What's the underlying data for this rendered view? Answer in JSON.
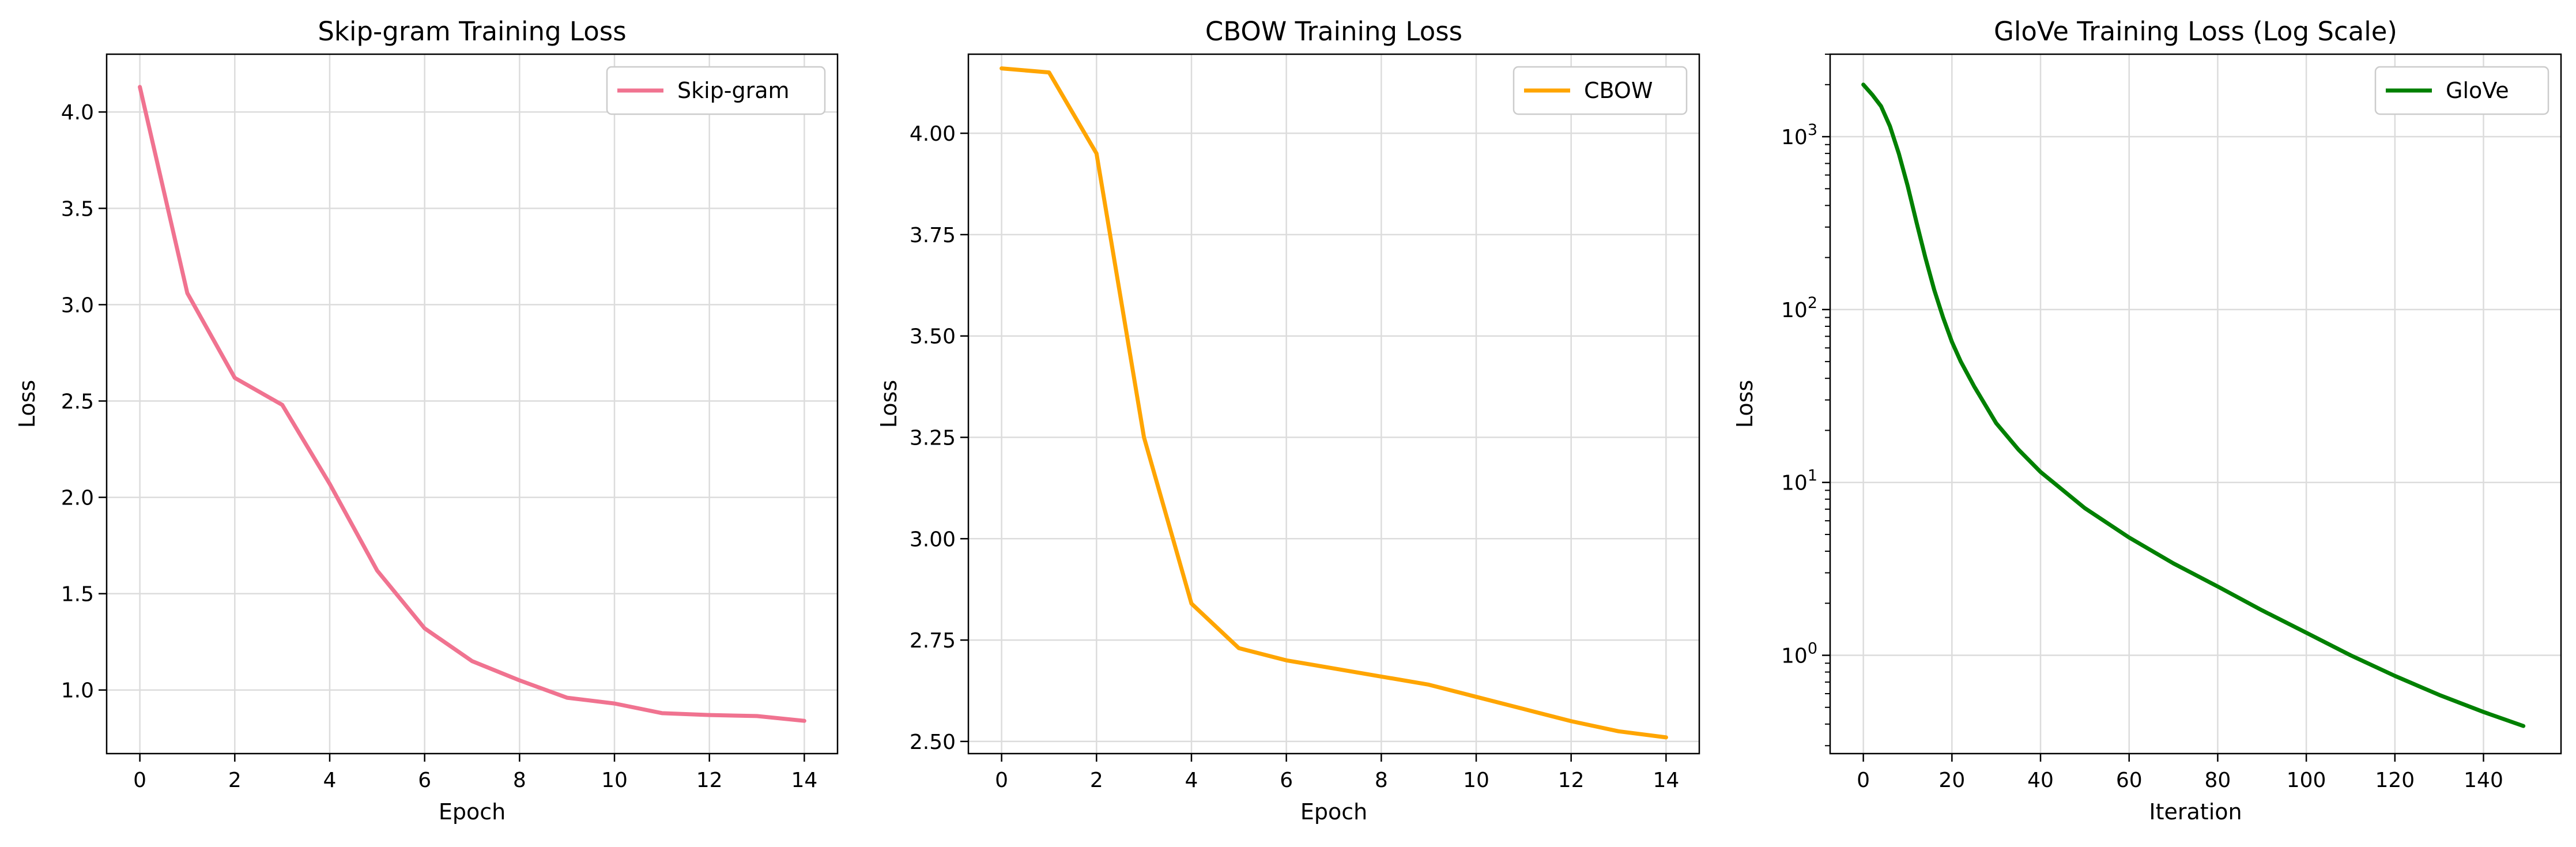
{
  "chart_data": [
    {
      "type": "line",
      "title": "Skip-gram Training Loss",
      "xlabel": "Epoch",
      "ylabel": "Loss",
      "xlim": [
        -0.7,
        14.7
      ],
      "ylim": [
        0.67,
        4.3
      ],
      "xticks": [
        0,
        2,
        4,
        6,
        8,
        10,
        12,
        14
      ],
      "yticks": [
        1.0,
        1.5,
        2.0,
        2.5,
        3.0,
        3.5,
        4.0
      ],
      "ytick_labels": [
        "1.0",
        "1.5",
        "2.0",
        "2.5",
        "3.0",
        "3.5",
        "4.0"
      ],
      "grid": true,
      "legend_position": "upper right",
      "series": [
        {
          "name": "Skip-gram",
          "color": "#f07390",
          "x": [
            0,
            1,
            2,
            3,
            4,
            5,
            6,
            7,
            8,
            9,
            10,
            11,
            12,
            13,
            14
          ],
          "values": [
            4.13,
            3.06,
            2.62,
            2.48,
            2.07,
            1.62,
            1.32,
            1.15,
            1.05,
            0.96,
            0.93,
            0.88,
            0.87,
            0.865,
            0.84
          ]
        }
      ]
    },
    {
      "type": "line",
      "title": "CBOW Training Loss",
      "xlabel": "Epoch",
      "ylabel": "Loss",
      "xlim": [
        -0.7,
        14.7
      ],
      "ylim": [
        2.47,
        4.195
      ],
      "xticks": [
        0,
        2,
        4,
        6,
        8,
        10,
        12,
        14
      ],
      "yticks": [
        2.5,
        2.75,
        3.0,
        3.25,
        3.5,
        3.75,
        4.0
      ],
      "ytick_labels": [
        "2.50",
        "2.75",
        "3.00",
        "3.25",
        "3.50",
        "3.75",
        "4.00"
      ],
      "grid": true,
      "legend_position": "upper right",
      "series": [
        {
          "name": "CBOW",
          "color": "#ffa500",
          "x": [
            0,
            1,
            2,
            3,
            4,
            5,
            6,
            7,
            8,
            9,
            10,
            11,
            12,
            13,
            14
          ],
          "values": [
            4.16,
            4.15,
            3.95,
            3.25,
            2.84,
            2.73,
            2.7,
            2.68,
            2.66,
            2.64,
            2.61,
            2.58,
            2.55,
            2.525,
            2.51
          ]
        }
      ]
    },
    {
      "type": "line",
      "title": "GloVe Training Loss (Log Scale)",
      "xlabel": "Iteration",
      "ylabel": "Loss",
      "yscale": "log",
      "xlim": [
        -7.5,
        157.5
      ],
      "ylim": [
        0.27,
        3000
      ],
      "xticks": [
        0,
        20,
        40,
        60,
        80,
        100,
        120,
        140
      ],
      "yticks": [
        1,
        10,
        100,
        1000
      ],
      "ytick_exponents": [
        "0",
        "1",
        "2",
        "3"
      ],
      "grid": true,
      "legend_position": "upper right",
      "series": [
        {
          "name": "GloVe",
          "color": "#008000",
          "x": [
            0,
            2,
            4,
            6,
            8,
            10,
            12,
            14,
            16,
            18,
            20,
            22,
            25,
            30,
            35,
            40,
            50,
            60,
            70,
            80,
            90,
            100,
            110,
            120,
            130,
            140,
            149
          ],
          "values": [
            2000,
            1750,
            1500,
            1150,
            800,
            520,
            320,
            200,
            130,
            90,
            65,
            50,
            36,
            22,
            15.5,
            11.5,
            7.1,
            4.8,
            3.4,
            2.5,
            1.82,
            1.35,
            1.0,
            0.76,
            0.59,
            0.47,
            0.39
          ]
        }
      ]
    }
  ]
}
